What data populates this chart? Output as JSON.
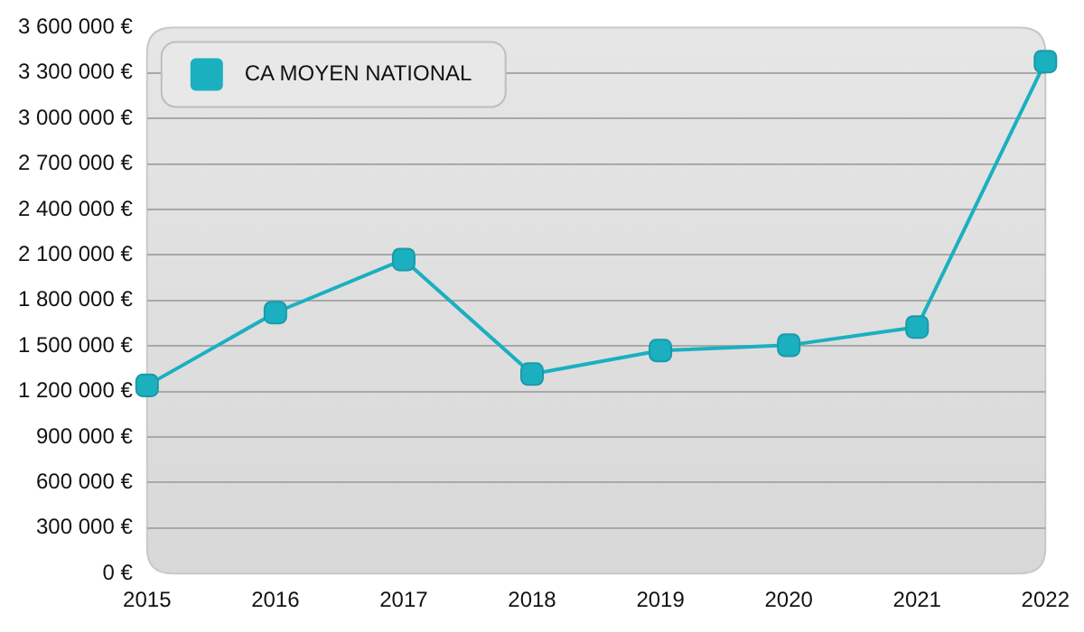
{
  "chart_data": {
    "type": "line",
    "categories": [
      "2015",
      "2016",
      "2017",
      "2018",
      "2019",
      "2020",
      "2021",
      "2022"
    ],
    "series": [
      {
        "name": "CA MOYEN NATIONAL",
        "color": "#1ab0c0",
        "values": [
          1240000,
          1720000,
          2070000,
          1315000,
          1470000,
          1505000,
          1625000,
          3375000
        ]
      }
    ],
    "ylim": [
      0,
      3600000
    ],
    "yticks": [
      {
        "value": 0,
        "label": "0 €"
      },
      {
        "value": 300000,
        "label": "300 000 €"
      },
      {
        "value": 600000,
        "label": "600 000 €"
      },
      {
        "value": 900000,
        "label": "900 000 €"
      },
      {
        "value": 1200000,
        "label": "1 200 000 €"
      },
      {
        "value": 1500000,
        "label": "1 500 000 €"
      },
      {
        "value": 1800000,
        "label": "1 800 000 €"
      },
      {
        "value": 2100000,
        "label": "2 100 000 €"
      },
      {
        "value": 2400000,
        "label": "2 400 000 €"
      },
      {
        "value": 2700000,
        "label": "2 700 000 €"
      },
      {
        "value": 3000000,
        "label": "3 000 000 €"
      },
      {
        "value": 3300000,
        "label": "3 300 000 €"
      },
      {
        "value": 3600000,
        "label": "3 600 000 €"
      }
    ],
    "grid": "y",
    "legend": "top left",
    "marker": "square",
    "line_style": "solid"
  }
}
